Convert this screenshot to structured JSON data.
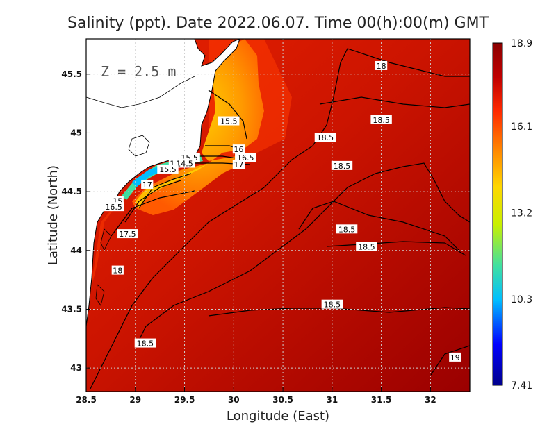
{
  "chart_data": {
    "type": "heatmap",
    "title": "Salinity (ppt). Date 2022.06.07. Time 00(h):00(m) GMT",
    "xlabel": "Longitude (East)",
    "ylabel": "Latitude (North)",
    "annotation": "Z = 2.5 m",
    "xlim": [
      28.5,
      32.4
    ],
    "ylim": [
      42.8,
      45.8
    ],
    "x_ticks": [
      "28.5",
      "29",
      "29.5",
      "30",
      "30.5",
      "31",
      "31.5",
      "32"
    ],
    "x_tick_values": [
      28.5,
      29,
      29.5,
      30,
      30.5,
      31,
      31.5,
      32
    ],
    "y_ticks": [
      "43",
      "43.5",
      "44",
      "44.5",
      "45",
      "45.5"
    ],
    "y_tick_values": [
      43,
      43.5,
      44,
      44.5,
      45,
      45.5
    ],
    "grid": true,
    "colorbar": {
      "min": 7.41,
      "max": 18.9,
      "ticks": [
        "18.9",
        "16.1",
        "13.2",
        "10.3",
        "7.41"
      ],
      "tick_values": [
        18.9,
        16.1,
        13.2,
        10.3,
        7.41
      ],
      "colors": [
        "#00008b",
        "#0000ff",
        "#00bfff",
        "#40e0a0",
        "#c8f000",
        "#ffd700",
        "#ff8c00",
        "#ff2a00",
        "#c00000",
        "#8b0000"
      ]
    },
    "contour_labels": [
      {
        "text": "18",
        "lon": 31.5,
        "lat": 45.57
      },
      {
        "text": "18.5",
        "lon": 31.5,
        "lat": 45.11
      },
      {
        "text": "18.5",
        "lon": 30.93,
        "lat": 44.96
      },
      {
        "text": "18.5",
        "lon": 31.1,
        "lat": 44.72
      },
      {
        "text": "18.5",
        "lon": 31.15,
        "lat": 44.18
      },
      {
        "text": "18.5",
        "lon": 31.35,
        "lat": 44.03
      },
      {
        "text": "18.5",
        "lon": 31.0,
        "lat": 43.54
      },
      {
        "text": "18.5",
        "lon": 29.1,
        "lat": 43.21
      },
      {
        "text": "19",
        "lon": 32.25,
        "lat": 43.09
      },
      {
        "text": "15.5",
        "lon": 29.95,
        "lat": 45.1
      },
      {
        "text": "16",
        "lon": 30.05,
        "lat": 44.86
      },
      {
        "text": "16.5",
        "lon": 30.12,
        "lat": 44.79
      },
      {
        "text": "17",
        "lon": 30.05,
        "lat": 44.73
      },
      {
        "text": "15.5",
        "lon": 29.55,
        "lat": 44.79
      },
      {
        "text": "14",
        "lon": 29.4,
        "lat": 44.74
      },
      {
        "text": "14.5",
        "lon": 29.5,
        "lat": 44.74
      },
      {
        "text": "15.5",
        "lon": 29.33,
        "lat": 44.69
      },
      {
        "text": "17",
        "lon": 29.12,
        "lat": 44.56
      },
      {
        "text": "15",
        "lon": 28.82,
        "lat": 44.42
      },
      {
        "text": "16.5",
        "lon": 28.78,
        "lat": 44.37
      },
      {
        "text": "17.5",
        "lon": 28.92,
        "lat": 44.14
      },
      {
        "text": "18",
        "lon": 28.82,
        "lat": 43.83
      }
    ]
  }
}
